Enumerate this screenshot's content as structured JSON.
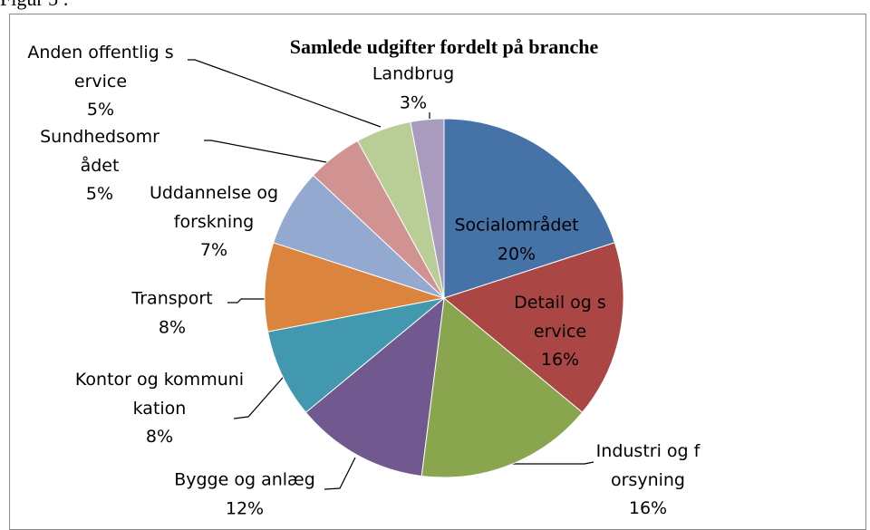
{
  "caption": "Figur 5 :",
  "chart_data": {
    "type": "pie",
    "title": "Samlede udgifter fordelt på branche",
    "categories": [
      "Socialområdet",
      "Detail og service",
      "Industri og forsyning",
      "Bygge og anlæg",
      "Kontor og kommunikation",
      "Transport",
      "Uddannelse og forskning",
      "Sundhedsområdet",
      "Anden offentlig service",
      "Landbrug"
    ],
    "values": [
      20,
      16,
      16,
      12,
      8,
      8,
      7,
      5,
      5,
      3
    ],
    "value_labels": [
      "20%",
      "16%",
      "16%",
      "12%",
      "8%",
      "8%",
      "7%",
      "5%",
      "5%",
      "3%"
    ],
    "colors": [
      "#4572a7",
      "#aa4643",
      "#89a54e",
      "#71588f",
      "#4198af",
      "#db843d",
      "#93a9cf",
      "#d19392",
      "#b9cd96",
      "#a99bbd"
    ]
  }
}
